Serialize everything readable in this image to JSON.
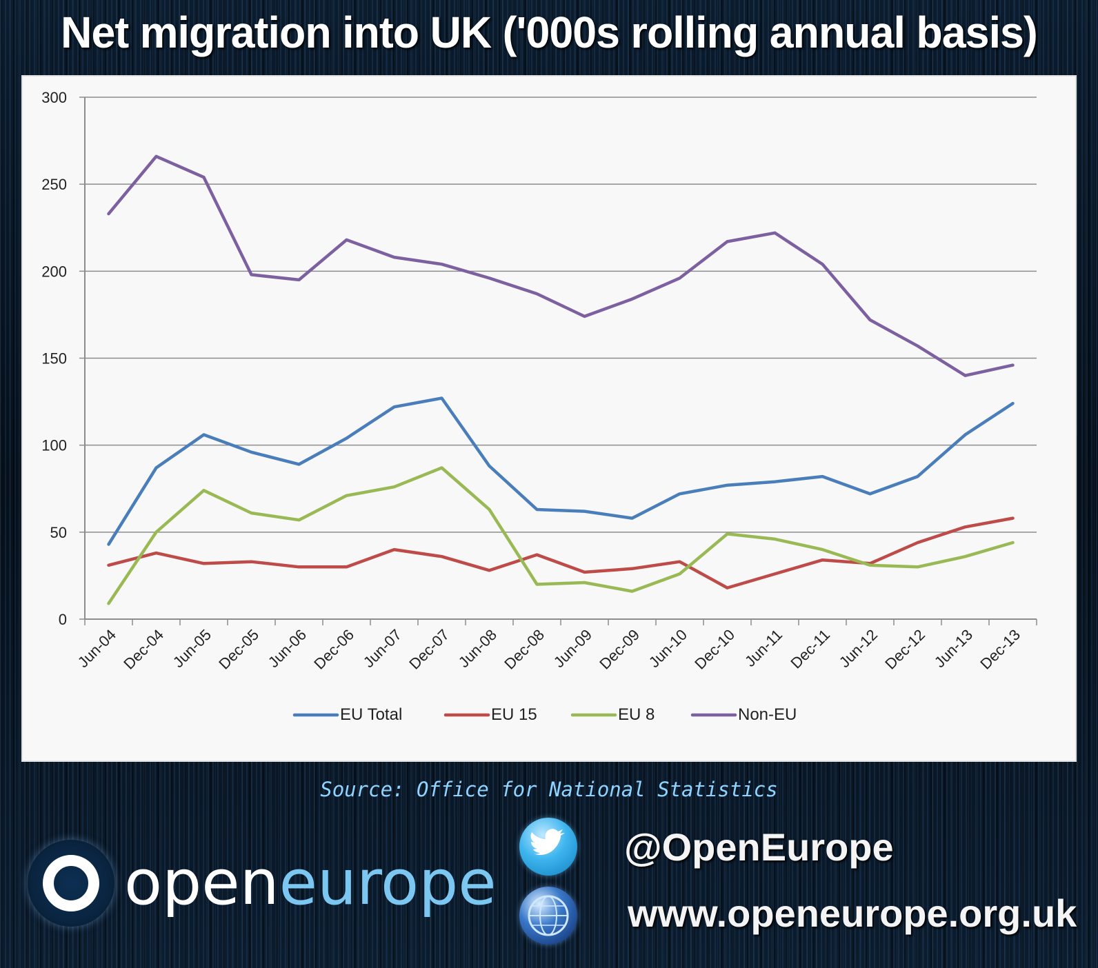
{
  "title": "Net migration into UK ('000s rolling annual basis)",
  "chart_data": {
    "type": "line",
    "title": "Net migration into UK ('000s rolling annual basis)",
    "xlabel": "",
    "ylabel": "",
    "ylim": [
      0,
      300
    ],
    "yticks": [
      0,
      50,
      100,
      150,
      200,
      250,
      300
    ],
    "ytick_labels": [
      "0",
      "50",
      "100",
      "150",
      "200",
      "250",
      "300"
    ],
    "grid": true,
    "legend_position": "bottom",
    "categories": [
      "Jun-04",
      "Dec-04",
      "Jun-05",
      "Dec-05",
      "Jun-06",
      "Dec-06",
      "Jun-07",
      "Dec-07",
      "Jun-08",
      "Dec-08",
      "Jun-09",
      "Dec-09",
      "Jun-10",
      "Dec-10",
      "Jun-11",
      "Dec-11",
      "Jun-12",
      "Dec-12",
      "Jun-13",
      "Dec-13"
    ],
    "series": [
      {
        "name": "EU Total",
        "color": "#4a7ebb",
        "values": [
          43,
          87,
          106,
          96,
          89,
          104,
          122,
          127,
          88,
          63,
          62,
          58,
          72,
          77,
          79,
          82,
          72,
          82,
          106,
          124
        ]
      },
      {
        "name": "EU 15",
        "color": "#be4b48",
        "values": [
          31,
          38,
          32,
          33,
          30,
          30,
          40,
          36,
          28,
          37,
          27,
          29,
          33,
          18,
          26,
          34,
          32,
          44,
          53,
          58
        ]
      },
      {
        "name": "EU 8",
        "color": "#98b954",
        "values": [
          9,
          50,
          74,
          61,
          57,
          71,
          76,
          87,
          63,
          20,
          21,
          16,
          26,
          49,
          46,
          40,
          31,
          30,
          36,
          44
        ]
      },
      {
        "name": "Non-EU",
        "color": "#7d60a0",
        "values": [
          233,
          266,
          254,
          198,
          195,
          218,
          208,
          204,
          196,
          187,
          174,
          184,
          196,
          217,
          222,
          204,
          172,
          157,
          140,
          146
        ]
      }
    ]
  },
  "source": "Source: Office for National Statistics",
  "logo": {
    "open": "open",
    "europe": "europe"
  },
  "social": {
    "twitter_icon": "twitter-bird-icon",
    "web_icon": "globe-icon",
    "handle": "@OpenEurope",
    "website": "www.openeurope.org.uk"
  }
}
